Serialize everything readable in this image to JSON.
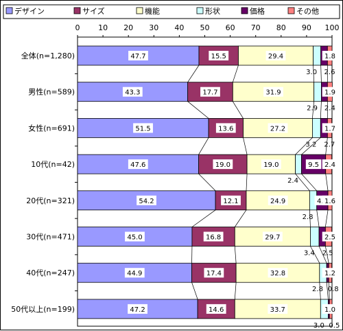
{
  "chart_data": {
    "type": "bar",
    "stacked": true,
    "horizontal": true,
    "xlim": [
      0,
      100
    ],
    "xticks": [
      0,
      10,
      20,
      30,
      40,
      50,
      60,
      70,
      80,
      90,
      100
    ],
    "legend_position": "top",
    "categories": [
      "全体(n=1,280)",
      "男性(n=589)",
      "女性(n=691)",
      "10代(n=42)",
      "20代(n=321)",
      "30代(n=471)",
      "40代(n=247)",
      "50代以上(n=199)"
    ],
    "series": [
      {
        "name": "デザイン",
        "color": "#9999ff",
        "values": [
          47.7,
          43.3,
          51.5,
          47.6,
          54.2,
          45.0,
          44.9,
          47.2
        ],
        "labels": [
          "47.7",
          "43.3",
          "51.5",
          "47.6",
          "54.2",
          "45.0",
          "44.9",
          "47.2"
        ]
      },
      {
        "name": "サイズ",
        "color": "#993366",
        "values": [
          15.5,
          17.7,
          13.6,
          19.0,
          12.1,
          16.8,
          17.4,
          14.6
        ],
        "labels": [
          "15.5",
          "17.7",
          "13.6",
          "19.0",
          "12.1",
          "16.8",
          "17.4",
          "14.6"
        ]
      },
      {
        "name": "機能",
        "color": "#ffffcc",
        "values": [
          29.4,
          31.9,
          27.2,
          19.0,
          24.9,
          29.7,
          32.8,
          33.7
        ],
        "labels": [
          "29.4",
          "31.9",
          "27.2",
          "19.0",
          "24.9",
          "29.7",
          "32.8",
          "33.7"
        ]
      },
      {
        "name": "形状",
        "color": "#ccffff",
        "values": [
          3.0,
          2.9,
          3.2,
          2.4,
          2.8,
          3.4,
          2.8,
          3.0
        ],
        "labels": [
          "3.0",
          "2.9",
          "3.2",
          "2.4",
          "2.8",
          "3.4",
          "2.8",
          "3.0"
        ]
      },
      {
        "name": "価格",
        "color": "#660066",
        "values": [
          2.6,
          2.4,
          2.7,
          9.5,
          4.4,
          2.5,
          0.8,
          0.5
        ],
        "labels": [
          "2.6",
          "2.4",
          "2.7",
          "9.5",
          "4.4",
          "2.5",
          "0.8",
          "0.5"
        ]
      },
      {
        "name": "その他",
        "color": "#ff8080",
        "values": [
          1.8,
          1.9,
          1.7,
          2.4,
          1.6,
          2.5,
          1.2,
          1.0
        ],
        "labels": [
          "1.8",
          "1.9",
          "1.7",
          "2.4",
          "1.6",
          "2.5",
          "1.2",
          "1.0"
        ]
      }
    ]
  }
}
